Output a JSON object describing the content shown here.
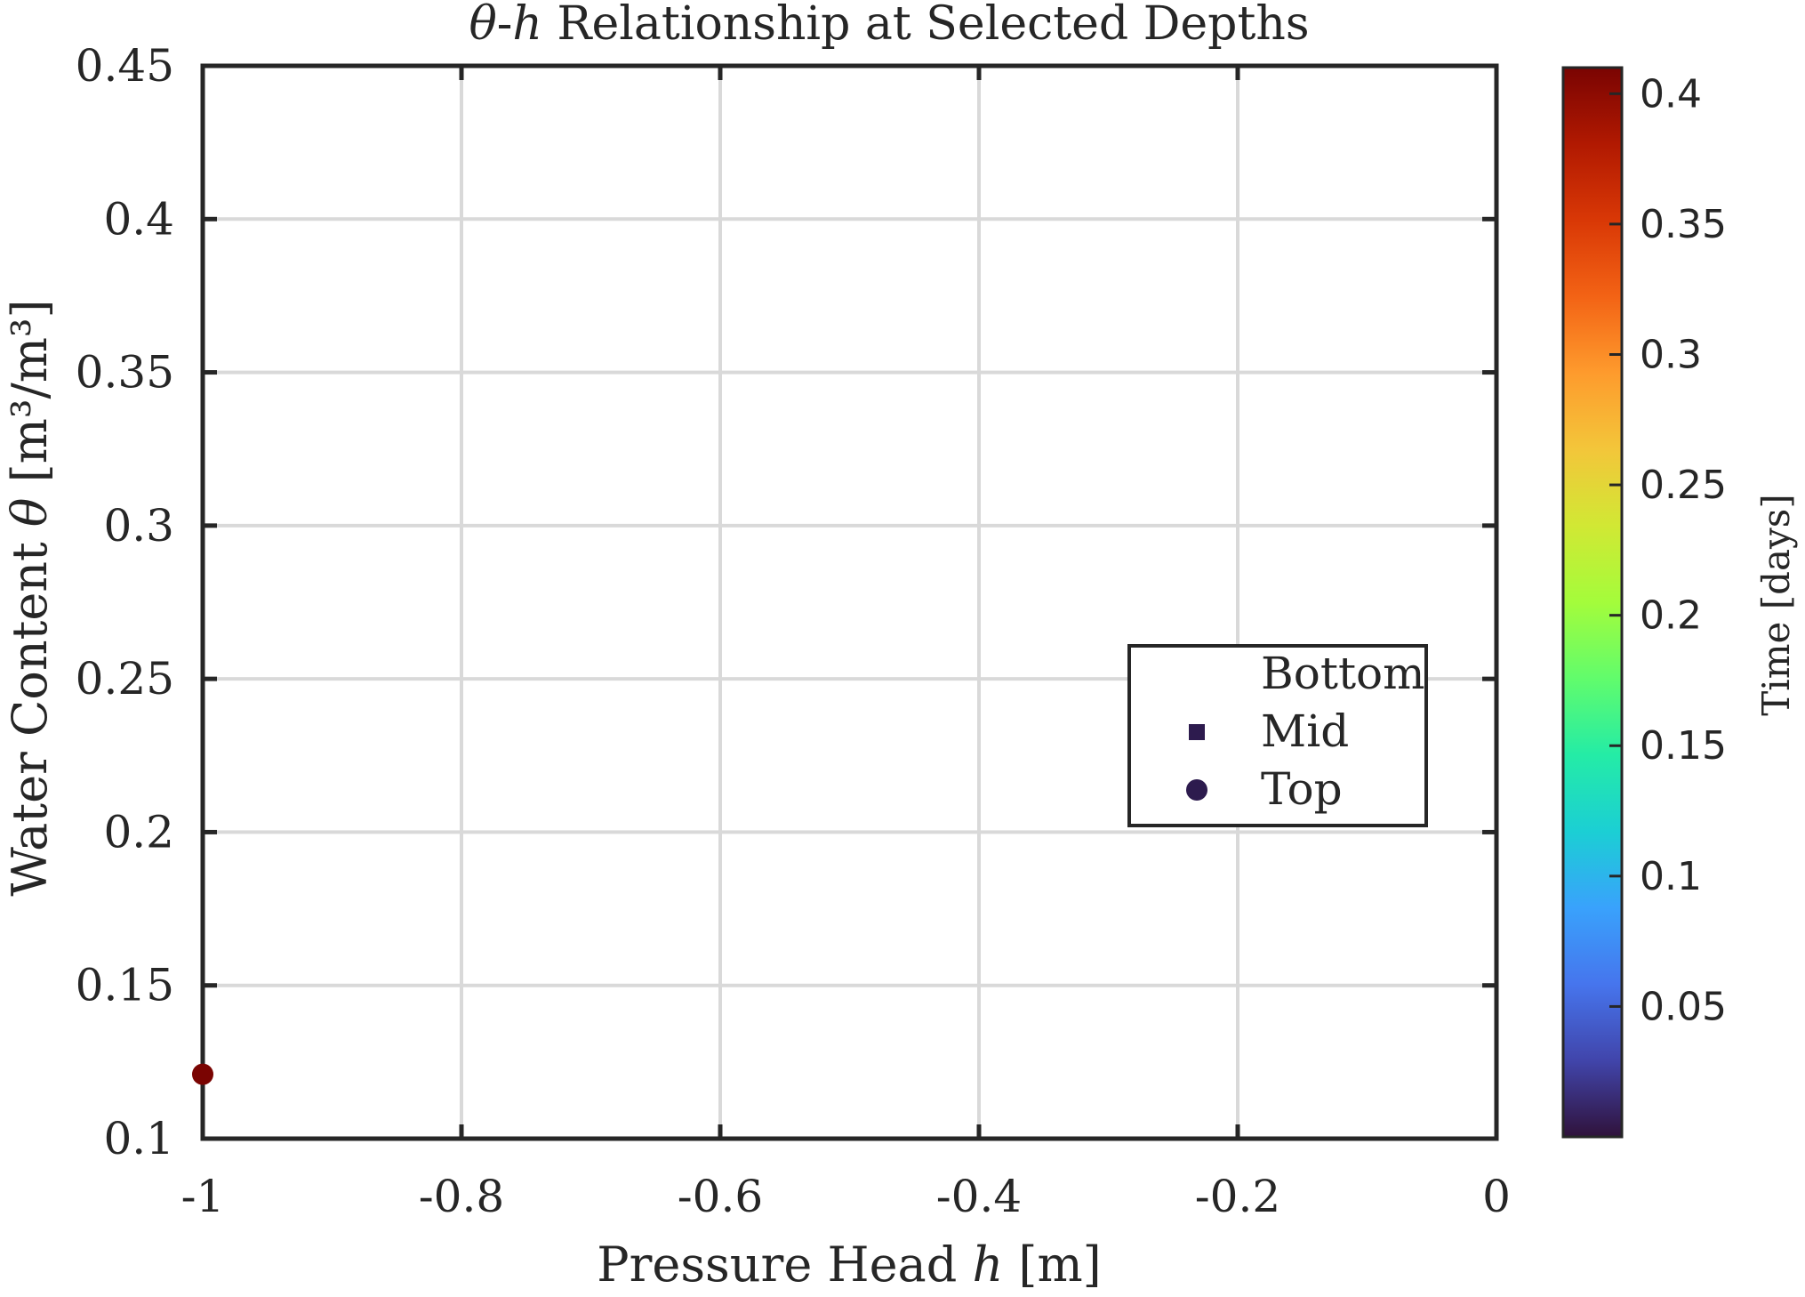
{
  "chart_data": {
    "type": "scatter",
    "title_symbol_theta": "θ",
    "title_symbol_h": "h",
    "title_rest": " Relationship at Selected Depths",
    "xlabel_text": "Pressure Head ",
    "xlabel_symbol": "h",
    "xlabel_unit": " [m]",
    "ylabel_text": "Water Content ",
    "ylabel_symbol": "θ",
    "ylabel_unit": " [m³/m³]",
    "xlim": [
      -1,
      0
    ],
    "ylim": [
      0.1,
      0.45
    ],
    "xticks": [
      -1,
      -0.8,
      -0.6,
      -0.4,
      -0.2,
      0
    ],
    "xtick_labels": [
      "-1",
      "-0.8",
      "-0.6",
      "-0.4",
      "-0.2",
      "0"
    ],
    "yticks": [
      0.1,
      0.15,
      0.2,
      0.25,
      0.3,
      0.35,
      0.4,
      0.45
    ],
    "ytick_labels": [
      "0.1",
      "0.15",
      "0.2",
      "0.25",
      "0.3",
      "0.35",
      "0.4",
      "0.45"
    ],
    "grid": true,
    "legend_position": "right",
    "legend": [
      {
        "label": "Bottom",
        "marker": "none",
        "color": "#2d1b4e"
      },
      {
        "label": "Mid",
        "marker": "square",
        "color": "#2d1b4e"
      },
      {
        "label": "Top",
        "marker": "circle",
        "color": "#2d1b4e"
      }
    ],
    "series": [
      {
        "name": "Top",
        "marker": "circle",
        "points": [
          {
            "x": -1,
            "y": 0.121,
            "t": 0.41
          }
        ]
      }
    ],
    "colorbar": {
      "label": "Time [days]",
      "lim": [
        0,
        0.41
      ],
      "ticks": [
        0.05,
        0.1,
        0.15,
        0.2,
        0.25,
        0.3,
        0.35,
        0.4
      ],
      "tick_labels": [
        "0.05",
        "0.1",
        "0.15",
        "0.2",
        "0.25",
        "0.3",
        "0.35",
        "0.4"
      ],
      "colormap": "turbo",
      "stops": [
        "#30123b",
        "#4145ab",
        "#4675ed",
        "#39a2fc",
        "#1bcfd4",
        "#24eca6",
        "#61fc6c",
        "#a4fc3b",
        "#d1e834",
        "#f3c63a",
        "#fe9b2d",
        "#f36315",
        "#d93806",
        "#b11901",
        "#7a0402"
      ]
    }
  }
}
